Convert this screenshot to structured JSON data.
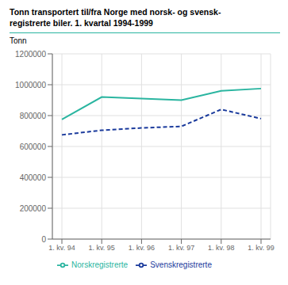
{
  "chart_data": {
    "type": "line",
    "title": "Tonn transportert til/fra Norge med norsk- og svensk-\nregistrerte biler. 1. kvartal 1994-1999",
    "y_label": "Tonn",
    "categories": [
      "1. kv. 94",
      "1. kv. 95",
      "1. kv. 96",
      "1. kv. 97",
      "1. kv. 98",
      "1. kv. 99"
    ],
    "series": [
      {
        "name": "Norskregistrerte",
        "color": "#2ab5a0",
        "line_style": "solid",
        "values": [
          775000,
          920000,
          910000,
          900000,
          960000,
          975000
        ]
      },
      {
        "name": "Svenskregistrerte",
        "color": "#1a3a9c",
        "line_style": "dashed",
        "values": [
          675000,
          705000,
          720000,
          730000,
          840000,
          780000
        ]
      }
    ],
    "ylim": [
      0,
      1200000
    ],
    "yticks": [
      0,
      200000,
      400000,
      600000,
      800000,
      1000000,
      1200000
    ],
    "grid": true,
    "legend": "bottom"
  }
}
